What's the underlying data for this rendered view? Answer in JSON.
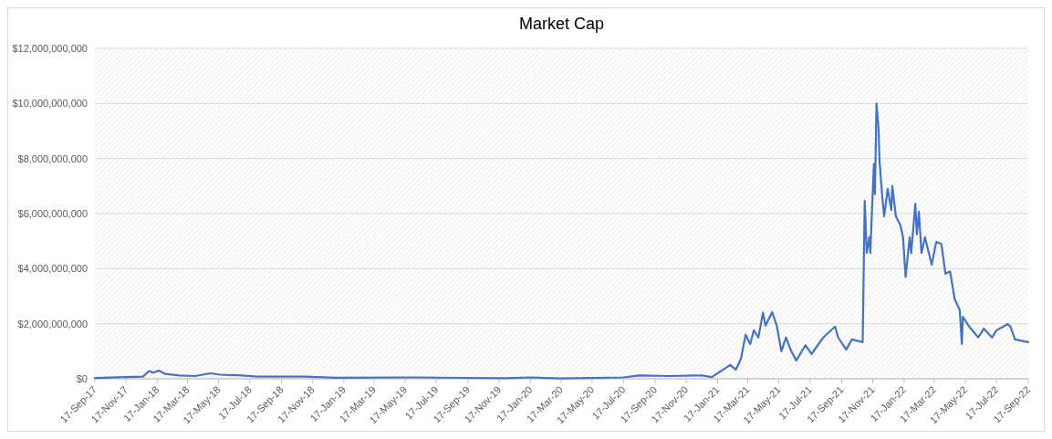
{
  "chart_data": {
    "type": "line",
    "title": "Market Cap",
    "grid": "y",
    "marker": "none",
    "line_style": "solid",
    "xlim": [
      "2017-09-17",
      "2022-09-17"
    ],
    "xticks": [
      {
        "value": "2017-09-17",
        "label": "17-Sep-17"
      },
      {
        "value": "2017-11-17",
        "label": "17-Nov-17"
      },
      {
        "value": "2018-01-17",
        "label": "17-Jan-18"
      },
      {
        "value": "2018-03-17",
        "label": "17-Mar-18"
      },
      {
        "value": "2018-05-17",
        "label": "17-May-18"
      },
      {
        "value": "2018-07-17",
        "label": "17-Jul-18"
      },
      {
        "value": "2018-09-17",
        "label": "17-Sep-18"
      },
      {
        "value": "2018-11-17",
        "label": "17-Nov-18"
      },
      {
        "value": "2019-01-17",
        "label": "17-Jan-19"
      },
      {
        "value": "2019-03-17",
        "label": "17-Mar-19"
      },
      {
        "value": "2019-05-17",
        "label": "17-May-19"
      },
      {
        "value": "2019-07-17",
        "label": "17-Jul-19"
      },
      {
        "value": "2019-09-17",
        "label": "17-Sep-19"
      },
      {
        "value": "2019-11-17",
        "label": "17-Nov-19"
      },
      {
        "value": "2020-01-17",
        "label": "17-Jan-20"
      },
      {
        "value": "2020-03-17",
        "label": "17-Mar-20"
      },
      {
        "value": "2020-05-17",
        "label": "17-May-20"
      },
      {
        "value": "2020-07-17",
        "label": "17-Jul-20"
      },
      {
        "value": "2020-09-17",
        "label": "17-Sep-20"
      },
      {
        "value": "2020-11-17",
        "label": "17-Nov-20"
      },
      {
        "value": "2021-01-17",
        "label": "17-Jan-21"
      },
      {
        "value": "2021-03-17",
        "label": "17-Mar-21"
      },
      {
        "value": "2021-05-17",
        "label": "17-May-21"
      },
      {
        "value": "2021-07-17",
        "label": "17-Jul-21"
      },
      {
        "value": "2021-09-17",
        "label": "17-Sep-21"
      },
      {
        "value": "2021-11-17",
        "label": "17-Nov-21"
      },
      {
        "value": "2022-01-17",
        "label": "17-Jan-22"
      },
      {
        "value": "2022-03-17",
        "label": "17-Mar-22"
      },
      {
        "value": "2022-05-17",
        "label": "17-May-22"
      },
      {
        "value": "2022-07-17",
        "label": "17-Jul-22"
      },
      {
        "value": "2022-09-17",
        "label": "17-Sep-22"
      }
    ],
    "ylim": [
      0,
      12000000000
    ],
    "yticks": [
      {
        "value": 0,
        "label": "$0"
      },
      {
        "value": 2000000000,
        "label": "$2,000,000,000"
      },
      {
        "value": 4000000000,
        "label": "$4,000,000,000"
      },
      {
        "value": 6000000000,
        "label": "$6,000,000,000"
      },
      {
        "value": 8000000000,
        "label": "$8,000,000,000"
      },
      {
        "value": 10000000000,
        "label": "$10,000,000,000"
      },
      {
        "value": 12000000000,
        "label": "$12,000,000,000"
      }
    ],
    "series": [
      {
        "color": "#4472c4",
        "x": [
          "2017-09-17",
          "2017-11-17",
          "2017-12-20",
          "2018-01-01",
          "2018-01-10",
          "2018-01-20",
          "2018-02-01",
          "2018-03-01",
          "2018-04-01",
          "2018-05-01",
          "2018-05-20",
          "2018-07-01",
          "2018-08-01",
          "2018-11-01",
          "2019-01-01",
          "2019-06-01",
          "2019-12-01",
          "2020-01-17",
          "2020-03-17",
          "2020-07-17",
          "2020-08-17",
          "2020-10-17",
          "2020-12-17",
          "2021-01-06",
          "2021-02-11",
          "2021-02-22",
          "2021-03-04",
          "2021-03-13",
          "2021-03-22",
          "2021-03-29",
          "2021-04-07",
          "2021-04-16",
          "2021-04-21",
          "2021-05-04",
          "2021-05-13",
          "2021-05-22",
          "2021-05-31",
          "2021-06-09",
          "2021-06-20",
          "2021-07-08",
          "2021-07-20",
          "2021-08-12",
          "2021-09-04",
          "2021-09-10",
          "2021-09-26",
          "2021-10-07",
          "2021-10-28",
          "2021-11-01",
          "2021-11-03",
          "2021-11-05",
          "2021-11-10",
          "2021-11-12",
          "2021-11-15",
          "2021-11-19",
          "2021-11-21",
          "2021-11-24",
          "2021-11-28",
          "2021-11-30",
          "2021-12-05",
          "2021-12-09",
          "2021-12-16",
          "2021-12-23",
          "2021-12-25",
          "2022-01-01",
          "2022-01-10",
          "2022-01-15",
          "2022-01-20",
          "2022-01-28",
          "2022-01-31",
          "2022-02-08",
          "2022-02-11",
          "2022-02-15",
          "2022-02-20",
          "2022-02-27",
          "2022-03-12",
          "2022-03-21",
          "2022-03-31",
          "2022-04-08",
          "2022-04-17",
          "2022-04-26",
          "2022-05-06",
          "2022-05-10",
          "2022-05-12",
          "2022-05-23",
          "2022-06-11",
          "2022-06-22",
          "2022-07-08",
          "2022-07-17",
          "2022-08-08",
          "2022-08-13",
          "2022-08-22",
          "2022-09-17"
        ],
        "values": [
          30000000,
          60000000,
          80000000,
          280000000,
          220000000,
          300000000,
          180000000,
          120000000,
          100000000,
          200000000,
          150000000,
          120000000,
          80000000,
          80000000,
          40000000,
          50000000,
          20000000,
          50000000,
          10000000,
          50000000,
          120000000,
          100000000,
          120000000,
          60000000,
          500000000,
          330000000,
          730000000,
          1600000000,
          1260000000,
          1760000000,
          1500000000,
          2400000000,
          1930000000,
          2420000000,
          1930000000,
          1000000000,
          1500000000,
          1060000000,
          660000000,
          1220000000,
          900000000,
          1500000000,
          1900000000,
          1500000000,
          1060000000,
          1430000000,
          1330000000,
          6460000000,
          5570000000,
          4570000000,
          5140000000,
          4570000000,
          6000000000,
          7800000000,
          6700000000,
          10000000000,
          9100000000,
          7900000000,
          6700000000,
          5900000000,
          6900000000,
          6130000000,
          7000000000,
          5900000000,
          5570000000,
          5140000000,
          3700000000,
          5140000000,
          4570000000,
          6360000000,
          5240000000,
          6070000000,
          4570000000,
          5140000000,
          4140000000,
          4970000000,
          4900000000,
          3810000000,
          3900000000,
          2900000000,
          2490000000,
          1260000000,
          2250000000,
          1930000000,
          1500000000,
          1820000000,
          1500000000,
          1760000000,
          1990000000,
          1900000000,
          1430000000,
          1330000000
        ]
      }
    ]
  }
}
